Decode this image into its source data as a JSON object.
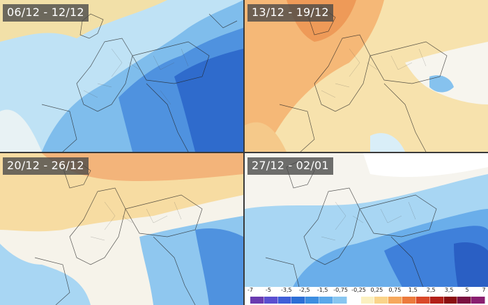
{
  "panels": [
    {
      "period": "06/12 - 12/12"
    },
    {
      "period": "13/12 - 19/12"
    },
    {
      "period": "20/12 - 26/12"
    },
    {
      "period": "27/12 - 02/01"
    }
  ],
  "legend": {
    "ticks": [
      "-7",
      "-5",
      "-3,5",
      "-2,5",
      "-1,5",
      "-0,75",
      "-0,25",
      "0,25",
      "0,75",
      "1,5",
      "2,5",
      "3,5",
      "5",
      "7"
    ],
    "colors": [
      "#6a3bb0",
      "#5b4fd0",
      "#3f5fd8",
      "#2c6fd6",
      "#3d8ee0",
      "#5aa8ea",
      "#88c6f0",
      "#ffffff",
      "#fbf0c0",
      "#fad48a",
      "#f6a85c",
      "#ec7a3c",
      "#d9492a",
      "#b22018",
      "#8a0f10",
      "#7a1040",
      "#8a2070"
    ]
  },
  "colors": {
    "cold_deep": "#2f6bcc",
    "cold": "#57a1e4",
    "cool": "#a4d4f2",
    "neutral": "#f4f2ea",
    "mild": "#f8e3ab",
    "warm": "#f4c27e",
    "warmer": "#ee9a58"
  }
}
